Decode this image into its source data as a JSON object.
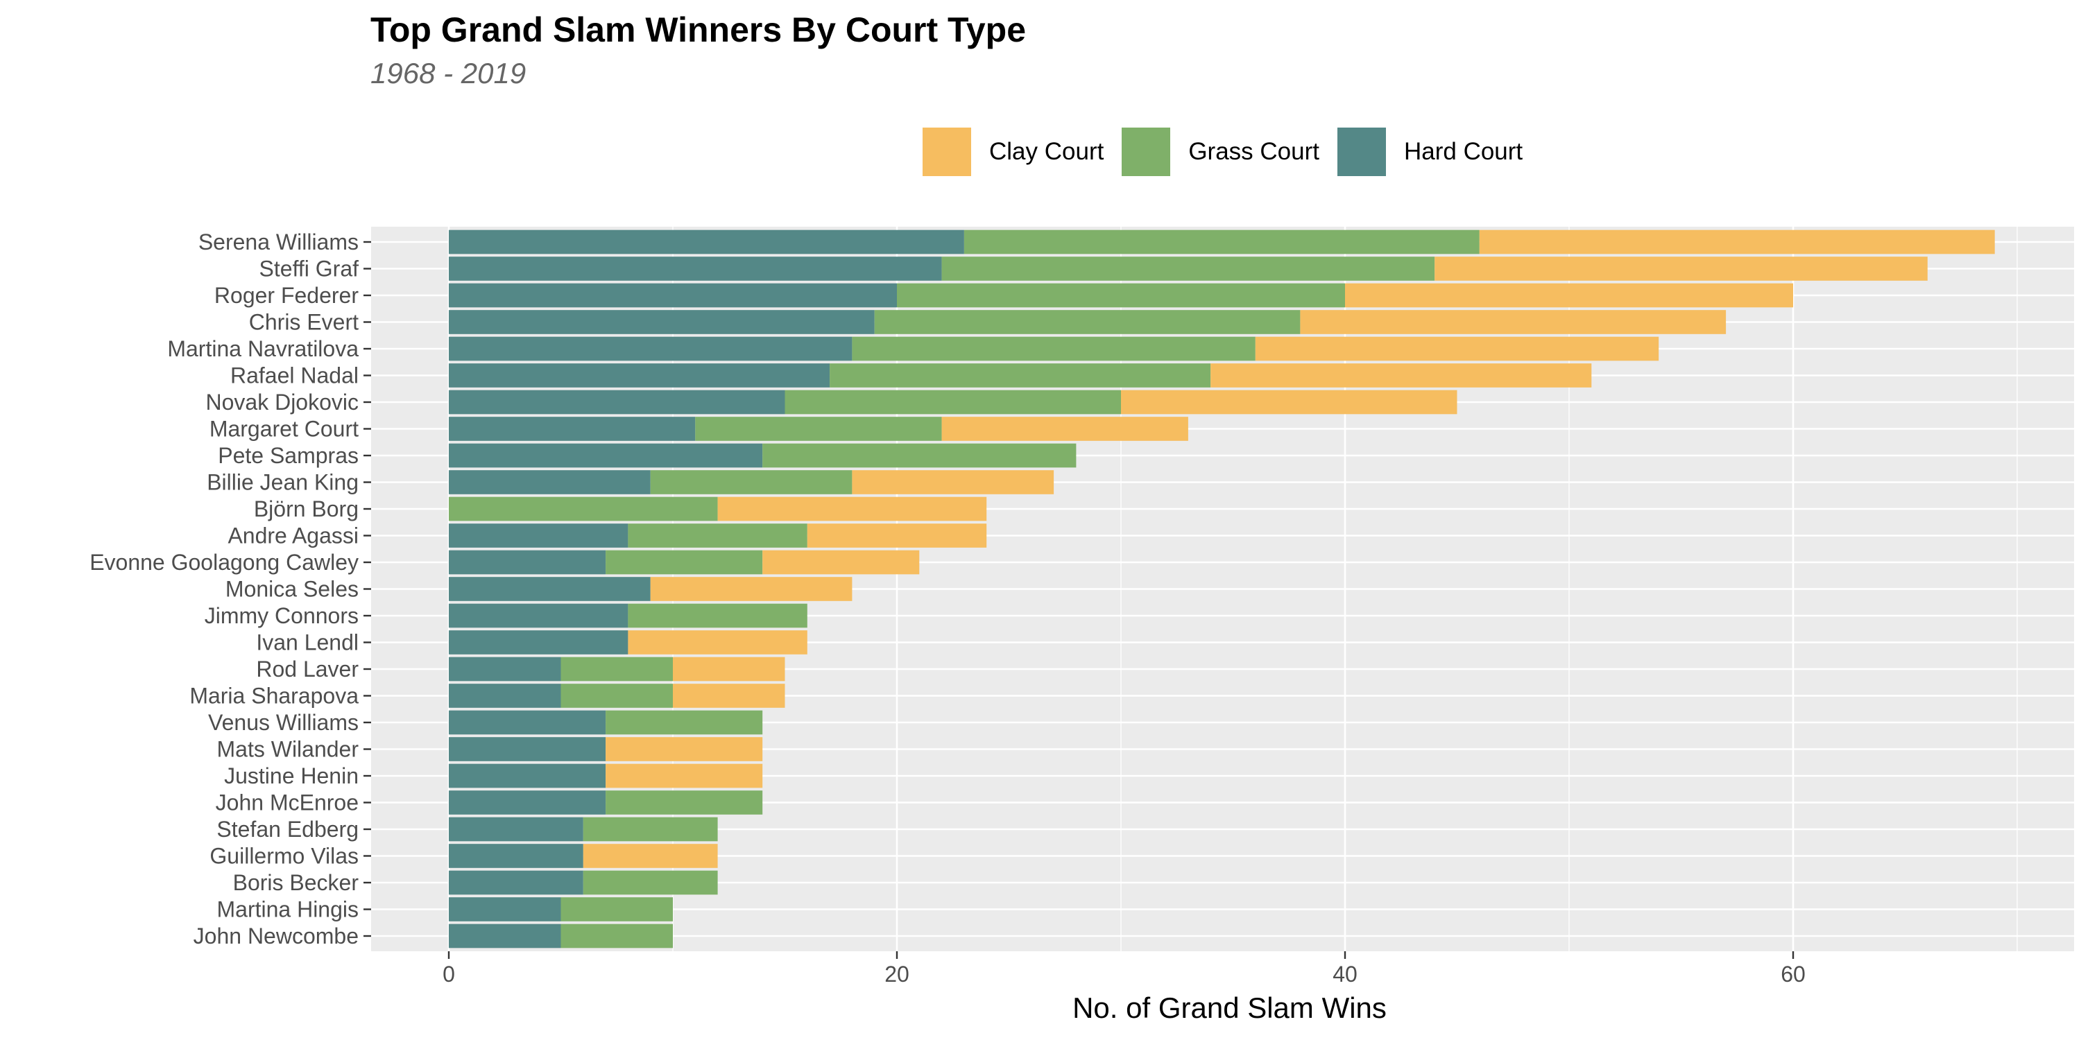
{
  "chart_data": {
    "type": "bar",
    "orientation": "horizontal",
    "stacked": true,
    "title": "Top Grand Slam Winners By Court Type",
    "subtitle": "1968 - 2019",
    "xlabel": "No. of Grand Slam Wins",
    "ylabel": "",
    "xlim": [
      0,
      73.5
    ],
    "xticks": [
      0,
      20,
      40,
      60
    ],
    "grid": true,
    "legend_position": "top",
    "categories": [
      "Serena Williams",
      "Steffi Graf",
      "Roger Federer",
      "Chris Evert",
      "Martina Navratilova",
      "Rafael Nadal",
      "Novak Djokovic",
      "Margaret Court",
      "Pete Sampras",
      "Billie Jean King",
      "Björn Borg",
      "Andre Agassi",
      "Evonne Goolagong Cawley",
      "Monica Seles",
      "Jimmy Connors",
      "Ivan Lendl",
      "Rod Laver",
      "Maria Sharapova",
      "Venus Williams",
      "Mats Wilander",
      "Justine Henin",
      "John McEnroe",
      "Stefan Edberg",
      "Guillermo Vilas",
      "Boris Becker",
      "Martina Hingis",
      "John Newcombe"
    ],
    "series": [
      {
        "name": "Hard Court",
        "color": "#548887",
        "values": [
          23,
          22,
          20,
          19,
          18,
          17,
          15,
          11,
          14,
          9,
          0,
          8,
          7,
          9,
          8,
          8,
          5,
          5,
          7,
          7,
          7,
          7,
          6,
          6,
          6,
          5,
          5
        ]
      },
      {
        "name": "Grass Court",
        "color": "#7FB069",
        "values": [
          23,
          22,
          20,
          19,
          18,
          17,
          15,
          11,
          14,
          9,
          12,
          8,
          7,
          0,
          8,
          0,
          5,
          5,
          7,
          0,
          0,
          7,
          6,
          0,
          6,
          5,
          5
        ]
      },
      {
        "name": "Clay Court",
        "color": "#F6BD60",
        "values": [
          23,
          22,
          20,
          19,
          18,
          17,
          15,
          11,
          0,
          9,
          12,
          8,
          7,
          9,
          0,
          8,
          5,
          5,
          0,
          7,
          7,
          0,
          0,
          6,
          0,
          0,
          0
        ]
      }
    ],
    "legend_order": [
      "Clay Court",
      "Grass Court",
      "Hard Court"
    ]
  }
}
